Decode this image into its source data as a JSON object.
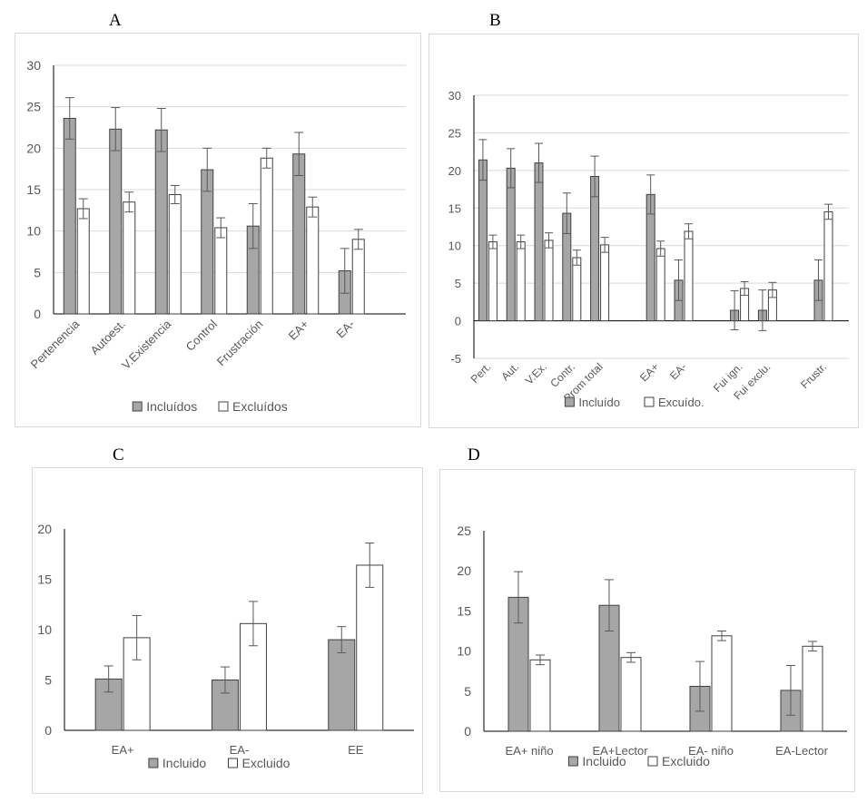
{
  "colors": {
    "included_fill": "#a6a6a6",
    "excluded_fill": "#ffffff",
    "bar_stroke": "#404040",
    "grid": "#d9d9d9",
    "error_bar": "#595959"
  },
  "chart_data": [
    {
      "id": "A",
      "type": "bar",
      "panel_label": "A",
      "categories": [
        "Pertenencia",
        "Autoest.",
        "V.Existencia",
        "Control",
        "Frustración",
        "EA+",
        "EA-"
      ],
      "series": [
        {
          "name": "Incluídos",
          "values": [
            23.6,
            22.3,
            22.2,
            17.4,
            10.6,
            19.3,
            5.2
          ],
          "errors": [
            2.5,
            2.6,
            2.6,
            2.6,
            2.7,
            2.6,
            2.7
          ]
        },
        {
          "name": "Excluídos",
          "values": [
            12.7,
            13.5,
            14.4,
            10.4,
            18.8,
            12.9,
            9.0
          ],
          "errors": [
            1.2,
            1.2,
            1.1,
            1.2,
            1.2,
            1.2,
            1.2
          ]
        }
      ],
      "ylim": [
        0,
        30
      ],
      "yticks": [
        0,
        5,
        10,
        15,
        20,
        25,
        30
      ],
      "grid": true,
      "legend_position": "bottom",
      "xlabel_rotation": "diagonal"
    },
    {
      "id": "B",
      "type": "bar",
      "panel_label": "B",
      "categories": [
        "Pert.",
        "Aut.",
        "V.Ex.",
        "Contr.",
        "Prom total",
        "",
        "EA+",
        "EA-",
        "",
        "Fui ign.",
        "Fui exclu.",
        "",
        "Frustr."
      ],
      "series": [
        {
          "name": "Incluído",
          "values": [
            21.4,
            20.3,
            21.0,
            14.3,
            19.2,
            null,
            16.8,
            5.4,
            null,
            1.4,
            1.4,
            null,
            5.4
          ],
          "errors": [
            2.7,
            2.6,
            2.6,
            2.7,
            2.7,
            null,
            2.6,
            2.7,
            null,
            2.6,
            2.7,
            null,
            2.7
          ]
        },
        {
          "name": "Excuído.",
          "values": [
            10.5,
            10.5,
            10.7,
            8.4,
            10.1,
            null,
            9.6,
            11.9,
            null,
            4.3,
            4.1,
            null,
            14.5
          ],
          "errors": [
            0.9,
            0.9,
            1.0,
            1.0,
            1.0,
            null,
            1.0,
            1.0,
            null,
            0.9,
            1.0,
            null,
            1.0
          ]
        }
      ],
      "ylim": [
        -5,
        30
      ],
      "yticks": [
        -5,
        0,
        5,
        10,
        15,
        20,
        25,
        30
      ],
      "grid": true,
      "legend_position": "bottom",
      "xlabel_rotation": "diagonal"
    },
    {
      "id": "C",
      "type": "bar",
      "panel_label": "C",
      "categories": [
        "EA+",
        "EA-",
        "EE"
      ],
      "series": [
        {
          "name": "Incluido",
          "values": [
            5.1,
            5.0,
            9.0
          ],
          "errors": [
            1.3,
            1.3,
            1.3
          ]
        },
        {
          "name": "Excluido",
          "values": [
            9.2,
            10.6,
            16.4
          ],
          "errors": [
            2.2,
            2.2,
            2.2
          ]
        }
      ],
      "ylim": [
        0,
        20
      ],
      "yticks": [
        0,
        5,
        10,
        15,
        20
      ],
      "grid": false,
      "legend_position": "bottom",
      "xlabel_rotation": "none"
    },
    {
      "id": "D",
      "type": "bar",
      "panel_label": "D",
      "categories": [
        "EA+ niño",
        "EA+Lector",
        "EA- niño",
        "EA-Lector"
      ],
      "series": [
        {
          "name": "Incluido",
          "values": [
            16.7,
            15.7,
            5.6,
            5.1
          ],
          "errors": [
            3.2,
            3.2,
            3.1,
            3.1
          ]
        },
        {
          "name": "Excluido",
          "values": [
            8.9,
            9.2,
            11.9,
            10.6
          ],
          "errors": [
            0.6,
            0.6,
            0.6,
            0.6
          ]
        }
      ],
      "ylim": [
        0,
        25
      ],
      "yticks": [
        0,
        5,
        10,
        15,
        20,
        25
      ],
      "grid": false,
      "legend_position": "bottom",
      "xlabel_rotation": "none"
    }
  ]
}
